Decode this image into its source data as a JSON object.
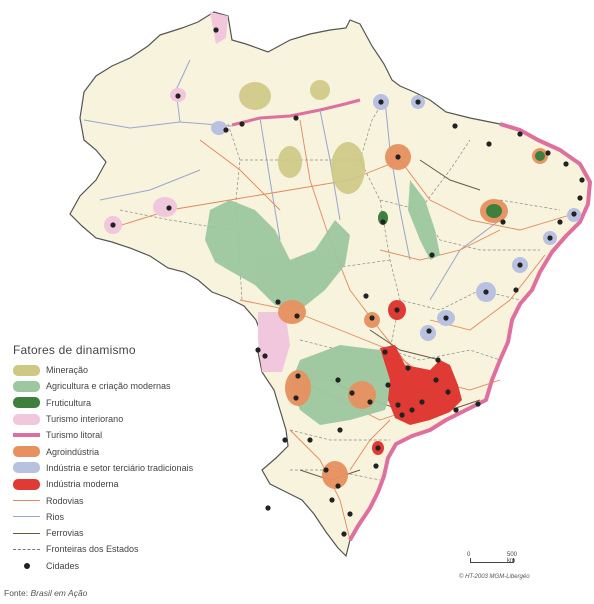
{
  "legend": {
    "title": "Fatores  de dinamismo",
    "items": [
      {
        "label": "Mineração",
        "color": "#cfc885",
        "kind": "area"
      },
      {
        "label": "Agricultura e criação modernas",
        "color": "#9cc79f",
        "kind": "area"
      },
      {
        "label": "Fruticultura",
        "color": "#3d7f3d",
        "kind": "area"
      },
      {
        "label": "Turismo interiorano",
        "color": "#f1c7dd",
        "kind": "area"
      },
      {
        "label": "Turismo litoral",
        "color": "#de6f9e",
        "kind": "thickline"
      },
      {
        "label": "Agroindústria",
        "color": "#e89160",
        "kind": "area"
      },
      {
        "label": "Indústria e setor terciário tradicionais",
        "color": "#b8c1e0",
        "kind": "area"
      },
      {
        "label": "Indústria moderna",
        "color": "#df3a34",
        "kind": "area"
      },
      {
        "label": "Rodovias",
        "color": "#e3885d",
        "kind": "line"
      },
      {
        "label": "Rios",
        "color": "#9aa6cf",
        "kind": "line"
      },
      {
        "label": "Ferrovias",
        "color": "#6b5a43",
        "kind": "line"
      },
      {
        "label": "Fronteiras dos Estados",
        "color": "#777777",
        "kind": "dashed"
      },
      {
        "label": "Cidades",
        "color": "#222222",
        "kind": "dot"
      }
    ]
  },
  "scale": {
    "min_label": "0",
    "max_label": "500 km"
  },
  "credit": "© HT-2003 MGM-Libergéo",
  "source": {
    "prefix": "Fonte: ",
    "name": "Brasil em Ação"
  },
  "colors": {
    "land": "#f7f3dc",
    "background": "#ffffff",
    "outline": "#555555"
  }
}
